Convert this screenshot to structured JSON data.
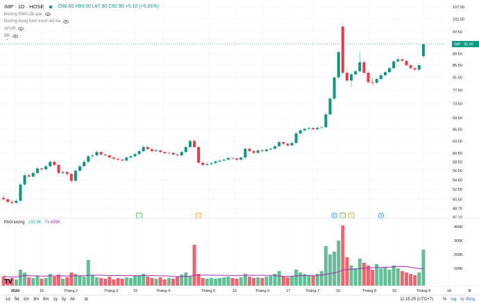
{
  "header": {
    "symbol": "IMP · 1D · HOSE",
    "ohlc": "O88.60 H93.00 L87.90 C92.90 +5.10 (+5.81%)",
    "status_color": "#089981"
  },
  "indicators": [
    {
      "label": "Đường EMA cắt qua"
    },
    {
      "label": "Đường trung bình trượt mũ ba"
    },
    {
      "label": "VPVR"
    },
    {
      "label": "BB"
    }
  ],
  "volume_legend": {
    "label": "Khối lượng",
    "value": "235.5K",
    "ma": "71.655K"
  },
  "last_price": {
    "symbol": "IMP",
    "value": "92.90"
  },
  "colors": {
    "up": "#089981",
    "down": "#f23645",
    "vol_up": "#5fbf95",
    "vol_down": "#f7606c",
    "ma": "#9c27b0"
  },
  "events": [
    {
      "glyph": "⌂",
      "color": "#4caf50",
      "candle": 32
    },
    {
      "glyph": "1",
      "color": "#ff9800",
      "candle": 46
    },
    {
      "glyph": "D",
      "color": "#2196f3",
      "candle": 78
    },
    {
      "glyph": "⌂",
      "color": "#4caf50",
      "candle": 80
    },
    {
      "glyph": "1",
      "color": "#ff9800",
      "candle": 82
    },
    {
      "glyph": "A",
      "color": "#2196f3",
      "candle": 89
    }
  ],
  "bottom": {
    "ranges": [
      "1d",
      "5d",
      "1m",
      "3m",
      "6m",
      "1y",
      "5y",
      "All"
    ],
    "time": "11:15:25 (UTC+7)",
    "percent": "%",
    "log": "log",
    "auto": "tự động"
  },
  "chart_data": {
    "type": "candlestick",
    "price_scale": "log",
    "y_ticks": [
      "107.50",
      "102.50",
      "97.50",
      "89.50",
      "85.50",
      "81.50",
      "77.50",
      "73.50",
      "69.50",
      "66.50",
      "63.50",
      "60.50",
      "58.50",
      "56.50",
      "54.50",
      "52.50",
      "50.50",
      "48.70",
      "47.10"
    ],
    "ylim": [
      47.1,
      107.5
    ],
    "volume_ticks": [
      "400K",
      "300K",
      "200K",
      "100K"
    ],
    "x_ticks": [
      "2024",
      "15",
      "Tháng 2",
      "Tháng 3",
      "15",
      "Tháng 4",
      "Tháng 5",
      "16",
      "Tháng 6",
      "17",
      "Tháng 7",
      "15",
      "Tháng 8",
      "15",
      "Tháng 9",
      "18"
    ],
    "ohlc": [
      [
        50.8,
        51.2,
        50.1,
        50.5
      ],
      [
        50.5,
        50.9,
        49.7,
        50.0
      ],
      [
        50.0,
        50.4,
        49.5,
        49.8
      ],
      [
        49.8,
        50.6,
        49.5,
        50.2
      ],
      [
        50.2,
        54.0,
        50.0,
        53.5
      ],
      [
        53.5,
        56.0,
        53.2,
        55.5
      ],
      [
        55.5,
        55.9,
        54.8,
        55.2
      ],
      [
        55.2,
        56.4,
        55.0,
        56.0
      ],
      [
        56.0,
        57.4,
        55.7,
        57.0
      ],
      [
        57.0,
        57.3,
        56.4,
        56.8
      ],
      [
        56.8,
        57.9,
        56.5,
        57.5
      ],
      [
        57.5,
        58.9,
        57.2,
        58.5
      ],
      [
        58.5,
        58.8,
        57.5,
        57.8
      ],
      [
        57.8,
        58.0,
        55.6,
        56.0
      ],
      [
        56.0,
        56.6,
        55.7,
        56.2
      ],
      [
        56.2,
        56.5,
        55.4,
        55.8
      ],
      [
        55.8,
        56.0,
        53.8,
        54.3
      ],
      [
        54.3,
        56.9,
        54.1,
        56.5
      ],
      [
        56.5,
        57.9,
        56.2,
        57.5
      ],
      [
        57.5,
        58.9,
        57.2,
        58.5
      ],
      [
        58.5,
        60.2,
        58.3,
        59.8
      ],
      [
        59.8,
        60.4,
        59.4,
        60.0
      ],
      [
        60.0,
        61.3,
        59.8,
        60.8
      ],
      [
        60.8,
        61.0,
        59.9,
        60.2
      ],
      [
        60.2,
        60.5,
        59.7,
        60.0
      ],
      [
        60.0,
        60.2,
        59.2,
        59.5
      ],
      [
        59.5,
        59.7,
        58.9,
        59.2
      ],
      [
        59.2,
        59.5,
        58.7,
        59.0
      ],
      [
        59.0,
        59.3,
        58.5,
        58.8
      ],
      [
        58.8,
        59.8,
        58.6,
        59.5
      ],
      [
        59.5,
        60.1,
        59.3,
        59.8
      ],
      [
        59.8,
        60.6,
        59.5,
        60.3
      ],
      [
        60.3,
        61.3,
        60.0,
        61.0
      ],
      [
        61.0,
        62.5,
        60.8,
        62.0
      ],
      [
        62.0,
        62.3,
        61.2,
        61.5
      ],
      [
        61.5,
        61.8,
        60.7,
        61.0
      ],
      [
        61.0,
        61.6,
        60.8,
        61.2
      ],
      [
        61.2,
        61.4,
        60.5,
        60.8
      ],
      [
        60.8,
        61.0,
        60.2,
        60.5
      ],
      [
        60.5,
        60.9,
        60.2,
        60.6
      ],
      [
        60.6,
        60.8,
        59.9,
        60.2
      ],
      [
        60.2,
        60.5,
        59.7,
        60.0
      ],
      [
        60.0,
        61.1,
        59.8,
        60.8
      ],
      [
        60.8,
        62.3,
        60.6,
        62.0
      ],
      [
        62.0,
        64.0,
        61.8,
        63.5
      ],
      [
        63.5,
        63.9,
        61.7,
        62.0
      ],
      [
        62.0,
        62.2,
        58.0,
        58.3
      ],
      [
        58.3,
        58.6,
        57.5,
        57.8
      ],
      [
        57.8,
        58.3,
        57.6,
        58.0
      ],
      [
        58.0,
        58.5,
        57.8,
        58.2
      ],
      [
        58.2,
        58.9,
        58.0,
        58.6
      ],
      [
        58.6,
        59.1,
        58.4,
        58.8
      ],
      [
        58.8,
        59.3,
        58.6,
        59.0
      ],
      [
        59.0,
        59.7,
        58.8,
        59.4
      ],
      [
        59.4,
        59.6,
        59.0,
        59.3
      ],
      [
        59.3,
        59.5,
        58.7,
        59.0
      ],
      [
        59.0,
        59.8,
        58.8,
        59.5
      ],
      [
        59.5,
        62.0,
        59.3,
        61.6
      ],
      [
        61.6,
        61.9,
        60.8,
        61.0
      ],
      [
        61.0,
        61.3,
        60.3,
        60.6
      ],
      [
        60.6,
        61.5,
        60.4,
        61.2
      ],
      [
        61.2,
        61.5,
        60.7,
        61.0
      ],
      [
        61.0,
        61.7,
        60.8,
        61.4
      ],
      [
        61.4,
        61.9,
        61.2,
        61.6
      ],
      [
        61.6,
        62.5,
        61.4,
        62.2
      ],
      [
        62.2,
        63.6,
        62.0,
        63.2
      ],
      [
        63.2,
        63.5,
        62.5,
        62.8
      ],
      [
        62.8,
        63.1,
        62.1,
        62.4
      ],
      [
        62.4,
        63.3,
        62.2,
        63.0
      ],
      [
        63.0,
        65.8,
        62.8,
        65.4
      ],
      [
        65.4,
        66.5,
        65.1,
        66.2
      ],
      [
        66.2,
        67.0,
        65.9,
        66.6
      ],
      [
        66.6,
        67.2,
        66.3,
        66.8
      ],
      [
        66.8,
        67.1,
        66.2,
        66.5
      ],
      [
        66.5,
        67.2,
        66.3,
        66.9
      ],
      [
        66.9,
        67.3,
        66.6,
        67.0
      ],
      [
        67.0,
        71.0,
        66.8,
        70.5
      ],
      [
        70.5,
        75.5,
        70.2,
        75.0
      ],
      [
        75.0,
        82.0,
        74.5,
        81.5
      ],
      [
        81.5,
        90.5,
        81.0,
        90.0
      ],
      [
        99.5,
        100.5,
        82.5,
        83.0
      ],
      [
        83.0,
        84.5,
        80.0,
        80.5
      ],
      [
        80.5,
        83.0,
        78.5,
        82.5
      ],
      [
        82.5,
        84.0,
        82.0,
        83.5
      ],
      [
        83.5,
        90.0,
        83.0,
        86.5
      ],
      [
        86.5,
        87.0,
        82.5,
        83.0
      ],
      [
        83.0,
        83.5,
        79.5,
        80.0
      ],
      [
        80.0,
        81.5,
        79.0,
        79.8
      ],
      [
        79.8,
        81.5,
        79.5,
        81.0
      ],
      [
        81.0,
        82.8,
        80.7,
        82.2
      ],
      [
        82.2,
        83.8,
        81.9,
        83.2
      ],
      [
        83.2,
        85.0,
        82.9,
        84.5
      ],
      [
        84.5,
        87.2,
        84.2,
        86.8
      ],
      [
        86.8,
        88.5,
        86.5,
        87.5
      ],
      [
        87.5,
        88.0,
        86.6,
        87.0
      ],
      [
        87.0,
        87.3,
        85.2,
        85.5
      ],
      [
        85.5,
        85.9,
        84.2,
        84.5
      ],
      [
        84.5,
        84.9,
        83.6,
        84.0
      ],
      [
        84.0,
        86.2,
        83.8,
        85.5
      ],
      [
        88.6,
        93.0,
        87.9,
        92.9
      ]
    ],
    "volume_k": [
      40,
      25,
      30,
      20,
      90,
      70,
      35,
      30,
      45,
      25,
      30,
      60,
      40,
      55,
      25,
      35,
      70,
      60,
      45,
      40,
      160,
      50,
      35,
      30,
      25,
      40,
      20,
      30,
      25,
      35,
      30,
      45,
      50,
      60,
      40,
      30,
      25,
      35,
      20,
      30,
      25,
      40,
      55,
      70,
      45,
      270,
      60,
      30,
      25,
      30,
      25,
      30,
      35,
      40,
      30,
      25,
      35,
      60,
      40,
      30,
      35,
      30,
      40,
      45,
      60,
      80,
      40,
      35,
      45,
      90,
      70,
      60,
      50,
      45,
      60,
      80,
      260,
      200,
      220,
      300,
      410,
      180,
      120,
      100,
      170,
      140,
      120,
      90,
      130,
      100,
      110,
      90,
      120,
      100,
      80,
      70,
      60,
      50,
      70,
      235.5
    ]
  }
}
